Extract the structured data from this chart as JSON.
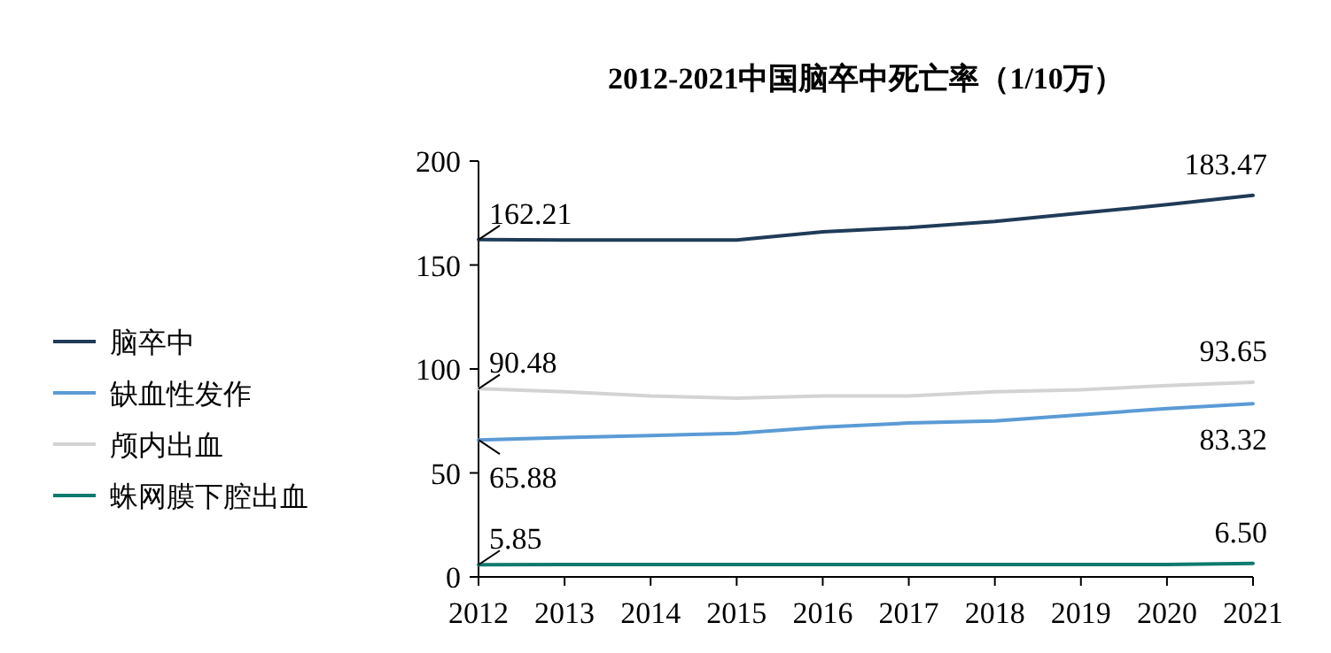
{
  "chart_data": {
    "type": "line",
    "title": "2012-2021中国脑卒中死亡率（1/10万）",
    "categories": [
      "2012",
      "2013",
      "2014",
      "2015",
      "2016",
      "2017",
      "2018",
      "2019",
      "2020",
      "2021"
    ],
    "series": [
      {
        "name": "脑卒中",
        "color": "#1f3b57",
        "values": [
          162.21,
          162,
          162,
          162,
          166,
          168,
          171,
          175,
          179,
          183.47
        ],
        "value_labels": [
          "162.21",
          null,
          null,
          null,
          null,
          null,
          null,
          null,
          null,
          "183.47"
        ]
      },
      {
        "name": "缺血性发作",
        "color": "#5b9bd5",
        "values": [
          65.88,
          67,
          68,
          69,
          72,
          74,
          75,
          78,
          81,
          83.32
        ],
        "value_labels": [
          "65.88",
          null,
          null,
          null,
          null,
          null,
          null,
          null,
          null,
          "83.32"
        ]
      },
      {
        "name": "颅内出血",
        "color": "#d3d3d3",
        "values": [
          90.48,
          89,
          87,
          86,
          87,
          87,
          89,
          90,
          92,
          93.65
        ],
        "value_labels": [
          "90.48",
          null,
          null,
          null,
          null,
          null,
          null,
          null,
          null,
          "93.65"
        ]
      },
      {
        "name": "蛛网膜下腔出血",
        "color": "#0e7a6e",
        "values": [
          5.85,
          6,
          6,
          6,
          6,
          6,
          6,
          6,
          6,
          6.5
        ],
        "value_labels": [
          "5.85",
          null,
          null,
          null,
          null,
          null,
          null,
          null,
          null,
          "6.50"
        ]
      }
    ],
    "ylim": [
      0,
      200
    ],
    "yticks": [
      0,
      50,
      100,
      150,
      200
    ],
    "legend": "left",
    "grid": false,
    "marker": "none",
    "line_style": "solid"
  }
}
